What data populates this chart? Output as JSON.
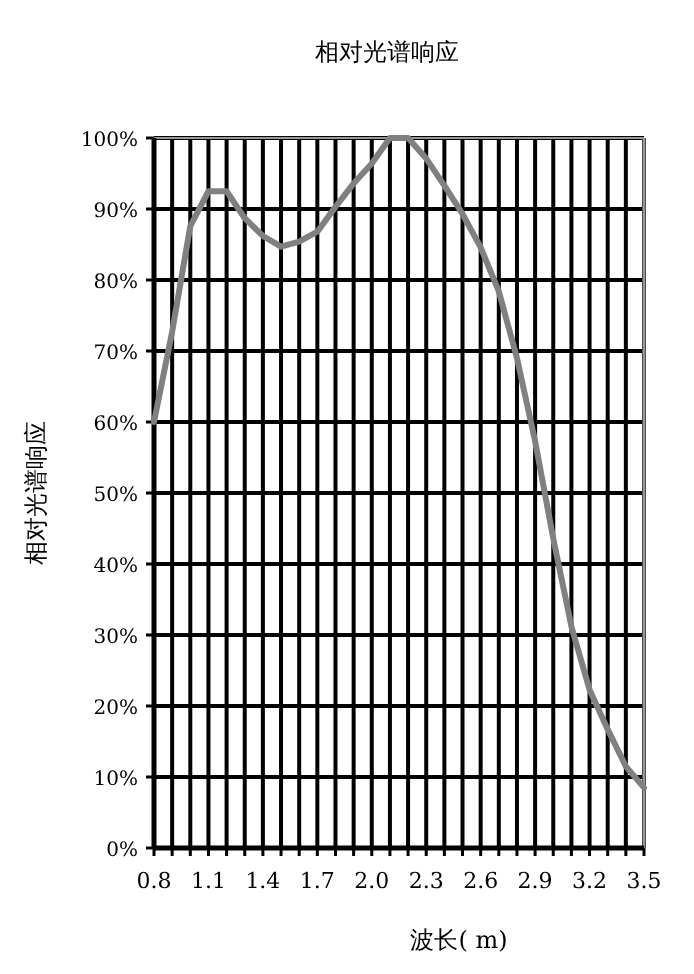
{
  "chart_data": {
    "type": "line",
    "title": "相对光谱响应",
    "xlabel": "波长( m)",
    "ylabel": "相对光谱响应",
    "x": [
      0.8,
      0.9,
      1.0,
      1.1,
      1.2,
      1.3,
      1.4,
      1.5,
      1.6,
      1.7,
      1.8,
      1.9,
      2.0,
      2.1,
      2.2,
      2.3,
      2.4,
      2.5,
      2.6,
      2.7,
      2.8,
      2.9,
      3.0,
      3.1,
      3.2,
      3.3,
      3.4,
      3.5
    ],
    "series": [
      {
        "color": "#808080",
        "values": [
          60,
          72.7,
          87.6,
          92.5,
          92.5,
          88.7,
          86.2,
          84.7,
          85.4,
          86.8,
          90.3,
          93.6,
          96.4,
          100,
          100,
          97.1,
          93.3,
          89.3,
          84.6,
          78.4,
          69.0,
          57.3,
          43.6,
          31.2,
          22.3,
          16.7,
          11.5,
          8.5
        ]
      }
    ],
    "xlim": [
      0.8,
      3.5
    ],
    "ylim": [
      0,
      100
    ],
    "xticks": [
      {
        "value": 0.8,
        "label": "0.8"
      },
      {
        "value": 0.9,
        "label": null
      },
      {
        "value": 1.0,
        "label": null
      },
      {
        "value": 1.1,
        "label": "1.1"
      },
      {
        "value": 1.2,
        "label": null
      },
      {
        "value": 1.3,
        "label": null
      },
      {
        "value": 1.4,
        "label": "1.4"
      },
      {
        "value": 1.5,
        "label": null
      },
      {
        "value": 1.6,
        "label": null
      },
      {
        "value": 1.7,
        "label": "1.7"
      },
      {
        "value": 1.8,
        "label": null
      },
      {
        "value": 1.9,
        "label": null
      },
      {
        "value": 2.0,
        "label": "2.0"
      },
      {
        "value": 2.1,
        "label": null
      },
      {
        "value": 2.2,
        "label": null
      },
      {
        "value": 2.3,
        "label": "2.3"
      },
      {
        "value": 2.4,
        "label": null
      },
      {
        "value": 2.5,
        "label": null
      },
      {
        "value": 2.6,
        "label": "2.6"
      },
      {
        "value": 2.7,
        "label": null
      },
      {
        "value": 2.8,
        "label": null
      },
      {
        "value": 2.9,
        "label": "2.9"
      },
      {
        "value": 3.0,
        "label": null
      },
      {
        "value": 3.1,
        "label": null
      },
      {
        "value": 3.2,
        "label": "3.2"
      },
      {
        "value": 3.3,
        "label": null
      },
      {
        "value": 3.4,
        "label": null
      },
      {
        "value": 3.5,
        "label": "3.5"
      }
    ],
    "yticks": [
      {
        "value": 0,
        "label": "0%"
      },
      {
        "value": 10,
        "label": "10%"
      },
      {
        "value": 20,
        "label": "20%"
      },
      {
        "value": 30,
        "label": "30%"
      },
      {
        "value": 40,
        "label": "40%"
      },
      {
        "value": 50,
        "label": "50%"
      },
      {
        "value": 60,
        "label": "60%"
      },
      {
        "value": 70,
        "label": "70%"
      },
      {
        "value": 80,
        "label": "80%"
      },
      {
        "value": 90,
        "label": "90%"
      },
      {
        "value": 100,
        "label": "100%"
      }
    ],
    "grid": true,
    "marker": "none",
    "line_style": "solid"
  }
}
